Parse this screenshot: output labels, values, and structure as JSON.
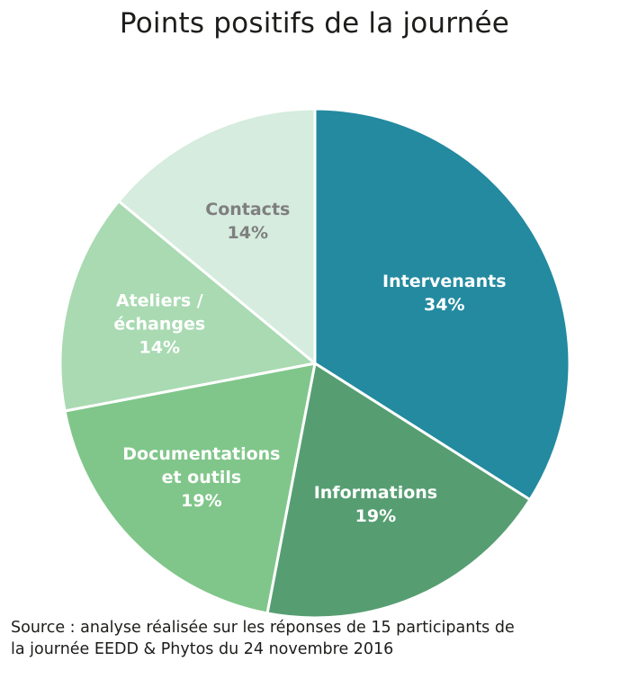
{
  "chart_data": {
    "type": "pie",
    "title": "Points positifs de la journée",
    "slices": [
      {
        "label": "Intervenants",
        "label_lines": [
          "Intervenants"
        ],
        "value": 34,
        "display": "34%",
        "color": "#238aa0",
        "text_color": "#ffffff"
      },
      {
        "label": "Informations",
        "label_lines": [
          "Informations"
        ],
        "value": 19,
        "display": "19%",
        "color": "#569e72",
        "text_color": "#ffffff"
      },
      {
        "label": "Documentations et outils",
        "label_lines": [
          "Documentations",
          "et outils"
        ],
        "value": 19,
        "display": "19%",
        "color": "#80c68a",
        "text_color": "#ffffff"
      },
      {
        "label": "Ateliers / échanges",
        "label_lines": [
          "Ateliers /",
          "échanges"
        ],
        "value": 14,
        "display": "14%",
        "color": "#a9dab2",
        "text_color": "#ffffff"
      },
      {
        "label": "Contacts",
        "label_lines": [
          "Contacts"
        ],
        "value": 14,
        "display": "14%",
        "color": "#d5ecde",
        "text_color": "#7f7f7f"
      }
    ],
    "start_angle_deg": 0,
    "direction": "clockwise",
    "source_lines": [
      "Source : analyse réalisée sur les réponses de 15 participants de",
      "la journée EEDD & Phytos du 24 novembre 2016"
    ]
  }
}
